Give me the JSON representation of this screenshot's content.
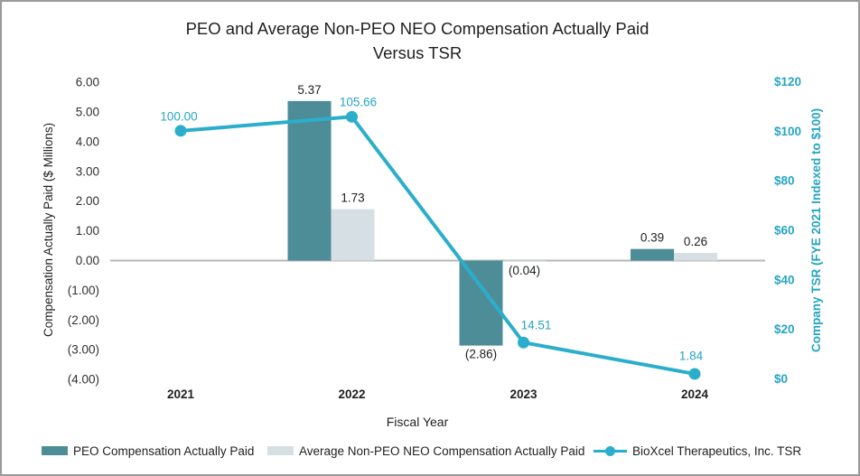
{
  "title": {
    "line1": "PEO and Average Non-PEO NEO Compensation Actually Paid",
    "line2": "Versus TSR"
  },
  "axes": {
    "left": {
      "title": "Compensation Actually Paid ($ Millions)",
      "ticks": [
        {
          "label": "6.00",
          "value": 6
        },
        {
          "label": "5.00",
          "value": 5
        },
        {
          "label": "4.00",
          "value": 4
        },
        {
          "label": "3.00",
          "value": 3
        },
        {
          "label": "2.00",
          "value": 2
        },
        {
          "label": "1.00",
          "value": 1
        },
        {
          "label": "0.00",
          "value": 0
        },
        {
          "label": "(1.00)",
          "value": -1
        },
        {
          "label": "(2.00)",
          "value": -2
        },
        {
          "label": "(3.00)",
          "value": -3
        },
        {
          "label": "(4.00)",
          "value": -4
        }
      ]
    },
    "right": {
      "title": "Company TSR (FYE 2021 Indexed to $100)",
      "ticks": [
        {
          "label": "$120",
          "value": 120
        },
        {
          "label": "$100",
          "value": 100
        },
        {
          "label": "$80",
          "value": 80
        },
        {
          "label": "$60",
          "value": 60
        },
        {
          "label": "$40",
          "value": 40
        },
        {
          "label": "$20",
          "value": 20
        },
        {
          "label": "$0",
          "value": 0
        }
      ]
    },
    "x": {
      "title": "Fiscal Year"
    }
  },
  "legend": [
    {
      "label": "PEO Compensation Actually Paid",
      "swatch": "bar-peo"
    },
    {
      "label": "Average Non-PEO NEO Compensation Actually Paid",
      "swatch": "bar-neo"
    },
    {
      "label": "BioXcel Therapeutics, Inc. TSR",
      "swatch": "line-tsr"
    }
  ],
  "colors": {
    "peo_bar": "#4D8D98",
    "neo_bar": "#D6E0E4",
    "tsr_line": "#2BAECB",
    "tsr_text": "#26A5C3",
    "axis_line": "#B7B7B7"
  },
  "chart_data": {
    "type": "combo-bar-line",
    "title": "PEO and Average Non-PEO NEO Compensation Actually Paid Versus TSR",
    "categories": [
      "2021",
      "2022",
      "2023",
      "2024"
    ],
    "series": [
      {
        "name": "PEO Compensation Actually Paid",
        "type": "bar",
        "axis": "left",
        "values": [
          null,
          5.37,
          -2.86,
          0.39
        ],
        "labels": [
          "",
          "5.37",
          "(2.86)",
          "0.39"
        ]
      },
      {
        "name": "Average Non-PEO NEO Compensation Actually Paid",
        "type": "bar",
        "axis": "left",
        "values": [
          null,
          1.73,
          -0.04,
          0.26
        ],
        "labels": [
          "",
          "1.73",
          "(0.04)",
          "0.26"
        ]
      },
      {
        "name": "BioXcel Therapeutics, Inc. TSR",
        "type": "line",
        "axis": "right",
        "values": [
          100.0,
          105.66,
          14.51,
          1.84
        ],
        "labels": [
          "100.00",
          "105.66",
          "14.51",
          "1.84"
        ]
      }
    ],
    "left_axis": {
      "label": "Compensation Actually Paid ($ Millions)",
      "range": [
        -4,
        6
      ],
      "tick_step": 1
    },
    "right_axis": {
      "label": "Company TSR (FYE 2021 Indexed to $100)",
      "range": [
        0,
        120
      ],
      "tick_step": 20
    },
    "xlabel": "Fiscal Year",
    "grid": false,
    "legend_position": "bottom"
  }
}
